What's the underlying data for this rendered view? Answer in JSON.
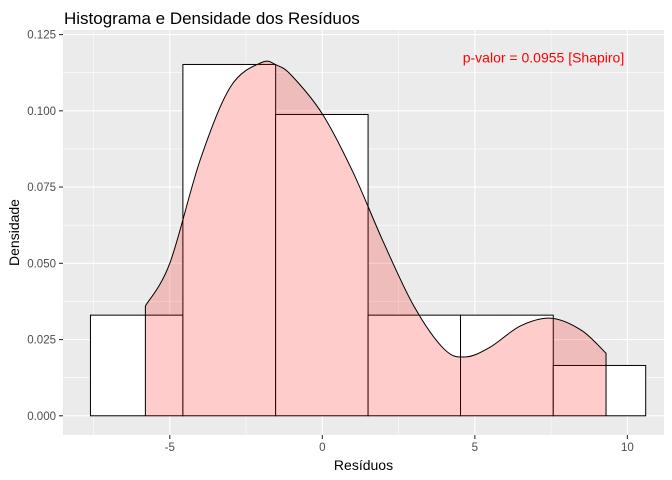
{
  "chart_data": {
    "type": "histogram",
    "title": "Histograma e Densidade dos Resíduos",
    "xlabel": "Resíduos",
    "ylabel": "Densidade",
    "xlim": [
      -8.5,
      11.2
    ],
    "ylim": [
      -0.0063,
      0.1265
    ],
    "x_ticks": [
      -5,
      0,
      5,
      10
    ],
    "y_ticks": [
      0.0,
      0.025,
      0.05,
      0.075,
      0.1,
      0.125
    ],
    "x_tick_labels": [
      "-5",
      "0",
      "5",
      "10"
    ],
    "y_tick_labels": [
      "0.000",
      "0.025",
      "0.050",
      "0.075",
      "0.100",
      "0.125"
    ],
    "grid": true,
    "bins": [
      {
        "x0": -7.6,
        "x1": -4.57,
        "density": 0.033
      },
      {
        "x0": -4.57,
        "x1": -1.53,
        "density": 0.1152
      },
      {
        "x0": -1.53,
        "x1": 1.5,
        "density": 0.0988
      },
      {
        "x0": 1.5,
        "x1": 4.53,
        "density": 0.033
      },
      {
        "x0": 4.53,
        "x1": 7.57,
        "density": 0.033
      },
      {
        "x0": 7.57,
        "x1": 10.6,
        "density": 0.0165
      }
    ],
    "density_curve": {
      "x": [
        -5.8,
        -5.0,
        -4.0,
        -3.0,
        -2.0,
        -1.5,
        -1.0,
        0.0,
        1.0,
        2.0,
        3.0,
        4.0,
        4.7,
        5.5,
        6.5,
        7.5,
        8.5,
        9.3
      ],
      "y": [
        0.036,
        0.05,
        0.084,
        0.108,
        0.1158,
        0.115,
        0.1115,
        0.099,
        0.08,
        0.057,
        0.036,
        0.0218,
        0.0193,
        0.0225,
        0.0295,
        0.032,
        0.028,
        0.0205
      ],
      "fill": "#ff0000",
      "fill_opacity": 0.2
    },
    "annotation": {
      "text": "p-valor = 0.0955 [Shapiro]",
      "x": 7.25,
      "y": 0.1175,
      "color": "#ff0000"
    },
    "colors": {
      "panel": "#ebebeb",
      "grid_major": "#ffffff",
      "bar_fill": "#ffffff",
      "bar_stroke": "#000000"
    }
  }
}
